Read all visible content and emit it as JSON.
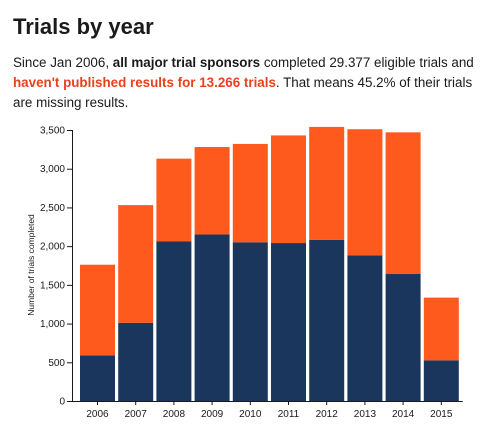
{
  "title": "Trials by year",
  "subtitle": {
    "part1": "Since Jan 2006, ",
    "part2": "all major trial sponsors",
    "part3": " completed 29.377 eligible trials and ",
    "part4": "haven't published results for 13.266 trials",
    "part5": ". That means 45.2% of their trials are missing results."
  },
  "colors": {
    "published": "#1b365d",
    "unpublished": "#fe5a1d",
    "accent_text": "#e8411e"
  },
  "chart_data": {
    "type": "bar",
    "stacked": true,
    "categories": [
      "2006",
      "2007",
      "2008",
      "2009",
      "2010",
      "2011",
      "2012",
      "2013",
      "2014",
      "2015"
    ],
    "series": [
      {
        "color": "#1b365d",
        "values": [
          590,
          1010,
          2060,
          2150,
          2050,
          2040,
          2080,
          1880,
          1640,
          525
        ]
      },
      {
        "color": "#fe5a1d",
        "values": [
          1170,
          1520,
          1070,
          1130,
          1270,
          1390,
          1460,
          1630,
          1830,
          810
        ]
      }
    ],
    "ylabel": "Number of trials completed",
    "ylim": [
      0,
      3500
    ],
    "yticks": [
      0,
      500,
      1000,
      1500,
      2000,
      2500,
      3000,
      3500
    ],
    "ytick_labels": [
      "0",
      "500",
      "1,000",
      "1,500",
      "2,000",
      "2,500",
      "3,000",
      "3,500"
    ]
  }
}
